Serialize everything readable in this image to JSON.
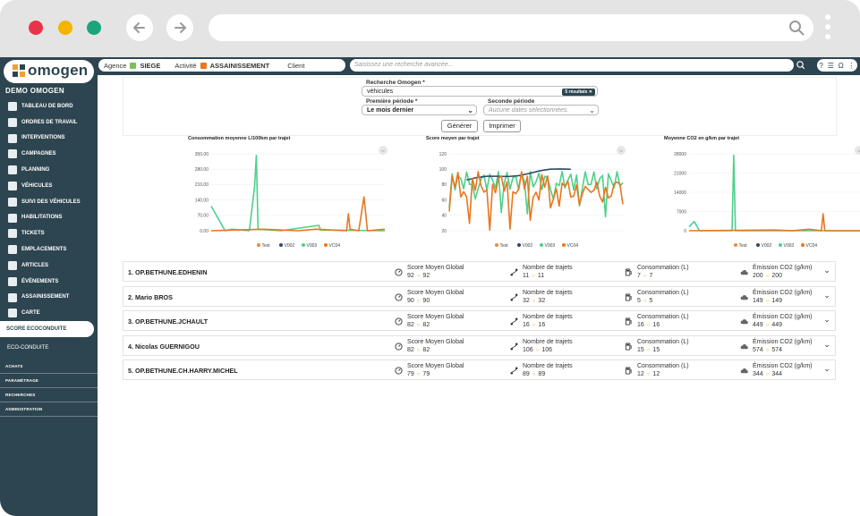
{
  "browser": {
    "url": ""
  },
  "app": {
    "logo_text": "omogen",
    "org_name": "DEMO OMOGEN",
    "menu": [
      {
        "label": "TABLEAU DE BORD",
        "icon": "dashboard-icon"
      },
      {
        "label": "ORDRES DE TRAVAIL",
        "icon": "work-order-icon"
      },
      {
        "label": "INTERVENTIONS",
        "icon": "intervention-icon"
      },
      {
        "label": "CAMPAGNES",
        "icon": "campaign-icon"
      },
      {
        "label": "PLANNING",
        "icon": "planning-icon"
      },
      {
        "label": "VÉHICULES",
        "icon": "truck-icon"
      },
      {
        "label": "SUIVI DES VÉHICULES",
        "icon": "eye-icon"
      },
      {
        "label": "HABILITATIONS",
        "icon": "badge-icon"
      },
      {
        "label": "TICKETS",
        "icon": "star-icon"
      },
      {
        "label": "EMPLACEMENTS",
        "icon": "pin-icon"
      },
      {
        "label": "ARTICLES",
        "icon": "tag-icon"
      },
      {
        "label": "ÉVÈNEMENTS",
        "icon": "chevron-right-icon"
      },
      {
        "label": "ASSAINISSEMENT",
        "icon": "tank-icon"
      },
      {
        "label": "CARTE",
        "icon": "map-icon"
      }
    ],
    "menu_active": "SCORE ECOCONDUITE",
    "menu_sub": "ECO-CONDUITE",
    "sections": [
      "ACHATS",
      "PARAMÉTRAGE",
      "RECHERCHES",
      "ADMINISTRATION"
    ]
  },
  "topbar": {
    "agence_label": "Agence",
    "agence_value": "SIEGE",
    "activite_label": "Activité",
    "activite_value": "ASSAINISSEMENT",
    "client_label": "Client",
    "search_placeholder": "Saisissez une recherche avancée...",
    "tools": [
      "?",
      "☰",
      "Ω",
      "⋮"
    ]
  },
  "form": {
    "search_label": "Recherche Omogen *",
    "search_value": "véhicules",
    "results_badge": "5 résultats",
    "period1_label": "Première période *",
    "period1_value": "Le mois dernier",
    "period2_label": "Seconde période",
    "period2_placeholder": "Aucune dates sélectionnées.",
    "generate_label": "Générer",
    "print_label": "Imprimer"
  },
  "charts": [
    {
      "title": "Consommation moyenne L/100km par trajet",
      "yticks": [
        "350.00",
        "280.00",
        "210.00",
        "140.00",
        "70.00",
        "0.00"
      ],
      "ymax": 350
    },
    {
      "title": "Score moyen par trajet",
      "yticks": [
        "120",
        "100",
        "80",
        "60",
        "40",
        "20"
      ],
      "ymax": 120
    },
    {
      "title": "Moyenne CO2 en g/km par trajet",
      "yticks": [
        "28000",
        "21000",
        "14000",
        "7000",
        "0"
      ],
      "ymax": 28000
    }
  ],
  "legend": [
    {
      "name": "Test",
      "color": "#f08a3a"
    },
    {
      "name": "V002",
      "color": "#2d4a6a"
    },
    {
      "name": "V003",
      "color": "#4fd08a"
    },
    {
      "name": "VC04",
      "color": "#e8771e"
    }
  ],
  "rows": [
    {
      "name": "1. OP.BETHUNE.EDHENIN",
      "score": [
        "92",
        "92"
      ],
      "trajets": [
        "11",
        "11"
      ],
      "conso": [
        "7",
        "7"
      ],
      "co2": [
        "200",
        "200"
      ]
    },
    {
      "name": "2. Mario BROS",
      "score": [
        "90",
        "90"
      ],
      "trajets": [
        "32",
        "32"
      ],
      "conso": [
        "5",
        "5"
      ],
      "co2": [
        "149",
        "149"
      ]
    },
    {
      "name": "3. OP.BETHUNE.JCHAULT",
      "score": [
        "82",
        "82"
      ],
      "trajets": [
        "16",
        "16"
      ],
      "conso": [
        "16",
        "16"
      ],
      "co2": [
        "449",
        "449"
      ]
    },
    {
      "name": "4. Nicolas GUERNIGOU",
      "score": [
        "82",
        "82"
      ],
      "trajets": [
        "106",
        "106"
      ],
      "conso": [
        "15",
        "15"
      ],
      "co2": [
        "574",
        "574"
      ]
    },
    {
      "name": "5. OP.BETHUNE.CH.HARRY.MICHEL",
      "score": [
        "79",
        "79"
      ],
      "trajets": [
        "89",
        "89"
      ],
      "conso": [
        "12",
        "12"
      ],
      "co2": [
        "344",
        "344"
      ]
    }
  ],
  "metric_labels": {
    "score": "Score Moyen Global",
    "trajets": "Nombre de trajets",
    "conso": "Consommation (L)",
    "co2": "Émission CO2 (g/km)"
  },
  "colors": {
    "sidebar": "#2d4550",
    "accent_orange": "#f0a030",
    "green": "#4fd08a",
    "orange": "#e8771e"
  }
}
